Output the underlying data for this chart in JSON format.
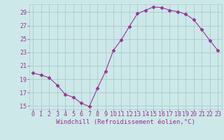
{
  "x": [
    0,
    1,
    2,
    3,
    4,
    5,
    6,
    7,
    8,
    9,
    10,
    11,
    12,
    13,
    14,
    15,
    16,
    17,
    18,
    19,
    20,
    21,
    22,
    23
  ],
  "y": [
    19.9,
    19.6,
    19.2,
    18.1,
    16.7,
    16.3,
    15.4,
    14.9,
    17.6,
    20.1,
    23.3,
    24.9,
    26.9,
    28.8,
    29.3,
    29.8,
    29.7,
    29.3,
    29.1,
    28.7,
    27.9,
    26.4,
    24.8,
    23.3
  ],
  "line_color": "#993399",
  "marker": "D",
  "marker_size": 2.5,
  "bg_color": "#cce8e8",
  "grid_color": "#aacccc",
  "xlabel": "Windchill (Refroidissement éolien,°C)",
  "xlabel_color": "#993399",
  "xlabel_fontsize": 6.5,
  "tick_color": "#993399",
  "tick_fontsize": 6,
  "ylim": [
    14.5,
    30.2
  ],
  "yticks": [
    15,
    17,
    19,
    21,
    23,
    25,
    27,
    29
  ],
  "xlim": [
    -0.5,
    23.5
  ],
  "xticks": [
    0,
    1,
    2,
    3,
    4,
    5,
    6,
    7,
    8,
    9,
    10,
    11,
    12,
    13,
    14,
    15,
    16,
    17,
    18,
    19,
    20,
    21,
    22,
    23
  ]
}
